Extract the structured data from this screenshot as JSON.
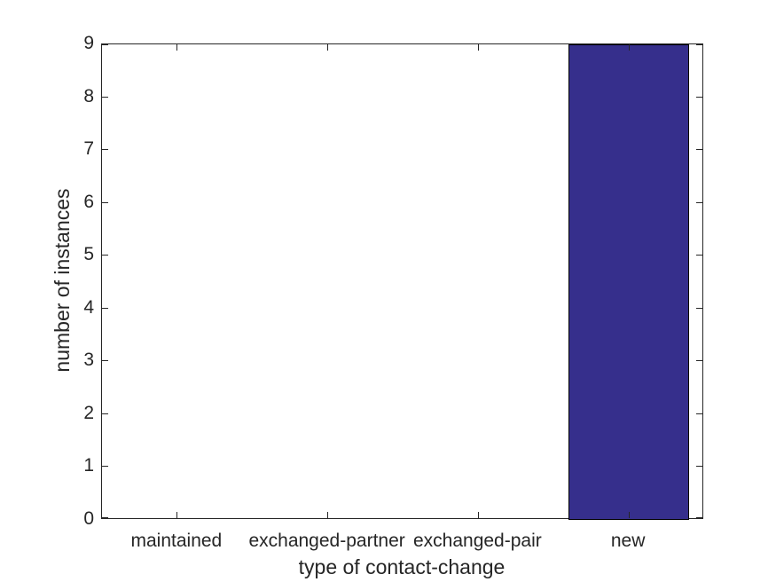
{
  "chart_data": {
    "type": "bar",
    "categories": [
      "maintained",
      "exchanged-partner",
      "exchanged-pair",
      "new"
    ],
    "values": [
      0,
      0,
      0,
      9
    ],
    "title": "",
    "xlabel": "type of contact-change",
    "ylabel": "number of instances",
    "ylim": [
      0,
      9
    ],
    "yticks": [
      0,
      1,
      2,
      3,
      4,
      5,
      6,
      7,
      8,
      9
    ],
    "bar_width_fraction": 0.8,
    "bar_color": "#362F8C",
    "bar_edge_color": "#000000",
    "axis_color": "#262626",
    "background_color": "#ffffff",
    "grid": false,
    "legend": false,
    "tick_direction": "in",
    "box": true
  }
}
